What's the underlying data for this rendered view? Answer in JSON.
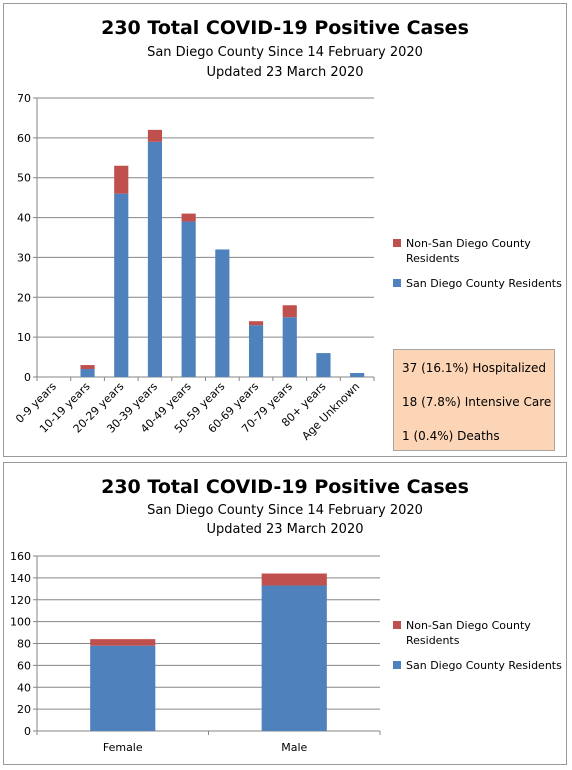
{
  "colors": {
    "resident": "#4f81bd",
    "nonresident": "#c0504d",
    "grid": "#868686",
    "stats_bg": "#fbd5b5"
  },
  "panel1": {
    "title": "230 Total COVID-19 Positive Cases",
    "subtitle1": "San Diego County Since 14 February 2020",
    "subtitle2": "Updated 23 March 2020",
    "legend": {
      "nonresident_line1": "Non-San Diego County",
      "nonresident_line2": "Residents",
      "resident": "San Diego County Residents"
    },
    "stats": {
      "hospitalized": "37 (16.1%) Hospitalized",
      "icu": "18 (7.8%) Intensive Care",
      "deaths": "1 (0.4%) Deaths"
    }
  },
  "panel2": {
    "title": "230 Total COVID-19 Positive Cases",
    "subtitle1": "San Diego County Since 14 February 2020",
    "subtitle2": "Updated 23 March 2020",
    "legend": {
      "nonresident_line1": "Non-San Diego County",
      "nonresident_line2": "Residents",
      "resident": "San Diego County Residents"
    }
  },
  "chart_data": [
    {
      "type": "bar",
      "stacked": true,
      "categories": [
        "0-9 years",
        "10-19 years",
        "20-29 years",
        "30-39 years",
        "40-49 years",
        "50-59 years",
        "60-69 years",
        "70-79 years",
        "80+ years",
        "Age Unknown"
      ],
      "series": [
        {
          "name": "San Diego County Residents",
          "values": [
            0,
            2,
            46,
            59,
            39,
            32,
            13,
            15,
            6,
            1
          ]
        },
        {
          "name": "Non-San Diego County Residents",
          "values": [
            0,
            1,
            7,
            3,
            2,
            0,
            1,
            3,
            0,
            0
          ]
        }
      ],
      "ylim": [
        0,
        70
      ],
      "yticks": [
        0,
        10,
        20,
        30,
        40,
        50,
        60,
        70
      ],
      "grid": true,
      "legend": "right"
    },
    {
      "type": "bar",
      "stacked": true,
      "categories": [
        "Female",
        "Male"
      ],
      "series": [
        {
          "name": "San Diego County Residents",
          "values": [
            78,
            133
          ]
        },
        {
          "name": "Non-San Diego County Residents",
          "values": [
            6,
            11
          ]
        }
      ],
      "ylim": [
        0,
        160
      ],
      "yticks": [
        0,
        20,
        40,
        60,
        80,
        100,
        120,
        140,
        160
      ],
      "grid": true,
      "legend": "right"
    }
  ]
}
